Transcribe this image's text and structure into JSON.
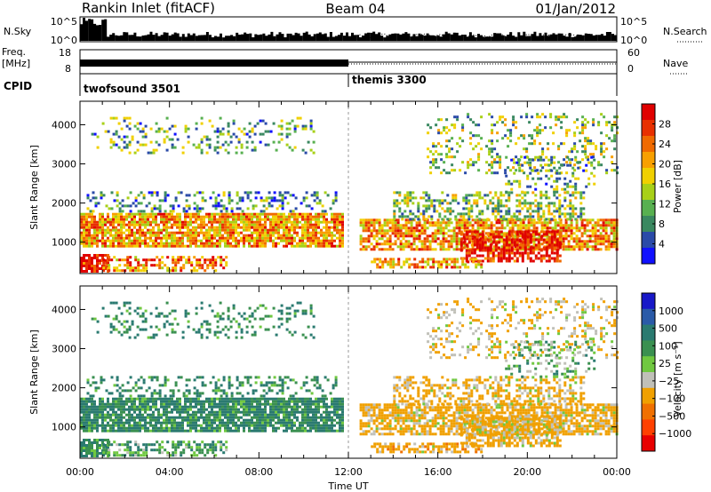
{
  "header": {
    "station": "Rankin Inlet (fitACF)",
    "beam": "Beam 04",
    "date": "01/Jan/2012"
  },
  "top_panel": {
    "left_label": "N.Sky",
    "left_ticks": [
      "10^5",
      "10^0"
    ],
    "right_label": "N.Search",
    "right_ticks": [
      "10^5",
      "10^0"
    ]
  },
  "freq_panel": {
    "left_label_1": "Freq.",
    "left_label_2": "[MHz]",
    "left_ticks": [
      "18",
      "8"
    ],
    "right_label": "Nave",
    "right_ticks": [
      "60",
      "0"
    ]
  },
  "cpid_panel": {
    "label": "CPID",
    "modes": [
      {
        "name": "twofsound 3501",
        "start_hour": 0,
        "end_hour": 12
      },
      {
        "name": "themis 3300",
        "start_hour": 12,
        "end_hour": 24
      }
    ]
  },
  "power_panel": {
    "ylabel": "Slant Range [km]",
    "yticks": [
      "4000",
      "3000",
      "2000",
      "1000"
    ],
    "cbar_label": "Power [dB]",
    "cbar_ticks": [
      "28",
      "24",
      "20",
      "16",
      "12",
      "8",
      "4"
    ],
    "cbar_colors": [
      "#1010ff",
      "#2a4aa8",
      "#3a8860",
      "#58b050",
      "#a8d018",
      "#f0d000",
      "#f8a000",
      "#f06a00",
      "#e83000",
      "#e00000"
    ]
  },
  "velocity_panel": {
    "ylabel": "Slant Range [km]",
    "yticks": [
      "4000",
      "3000",
      "2000",
      "1000"
    ],
    "cbar_label": "Velocity [m s⁻¹]",
    "cbar_ticks": [
      "1000",
      "500",
      "100",
      "25",
      "−25",
      "−100",
      "−500",
      "−1000"
    ],
    "cbar_colors": [
      "#1818c8",
      "#2a5aa8",
      "#2a7a70",
      "#3a9050",
      "#70c840",
      "#c0c0b8",
      "#f0a000",
      "#f07000",
      "#ff4000",
      "#e80000"
    ]
  },
  "x_axis": {
    "label": "Time UT",
    "ticks": [
      "00:00",
      "04:00",
      "08:00",
      "12:00",
      "16:00",
      "20:00",
      "00:00"
    ]
  },
  "chart_data": {
    "type": "heatmap",
    "title": "Rankin Inlet (fitACF) Beam 04 01/Jan/2012",
    "xlabel": "Time UT",
    "ylabel": "Slant Range [km]",
    "xlim_hours": [
      0,
      24
    ],
    "ylim_km": [
      200,
      4600
    ],
    "panels": [
      {
        "name": "Power",
        "unit": "dB",
        "color_range": [
          0,
          30
        ]
      },
      {
        "name": "Velocity",
        "unit": "m s⁻¹",
        "color_range": [
          -1000,
          1000
        ]
      }
    ],
    "echo_regions": [
      {
        "t0": 0.0,
        "t1": 11.8,
        "r0": 900,
        "r1": 1750,
        "power": 20,
        "velocity": 120,
        "density": 0.85
      },
      {
        "t0": 0.0,
        "t1": 1.2,
        "r0": 250,
        "r1": 700,
        "power": 28,
        "velocity": 80,
        "density": 0.8
      },
      {
        "t0": 1.0,
        "t1": 6.5,
        "r0": 250,
        "r1": 650,
        "power": 22,
        "velocity": 60,
        "density": 0.55
      },
      {
        "t0": 0.3,
        "t1": 11.5,
        "r0": 1800,
        "r1": 2300,
        "power": 8,
        "velocity": 100,
        "density": 0.3
      },
      {
        "t0": 0.5,
        "t1": 10.5,
        "r0": 3300,
        "r1": 4200,
        "power": 10,
        "velocity": 100,
        "density": 0.18
      },
      {
        "t0": 12.5,
        "t1": 24.0,
        "r0": 800,
        "r1": 1600,
        "power": 20,
        "velocity": -200,
        "density": 0.75
      },
      {
        "t0": 17.0,
        "t1": 21.5,
        "r0": 500,
        "r1": 1300,
        "power": 28,
        "velocity": -150,
        "density": 0.7
      },
      {
        "t0": 14.0,
        "t1": 22.5,
        "r0": 1600,
        "r1": 2300,
        "power": 12,
        "velocity": -150,
        "density": 0.45
      },
      {
        "t0": 13.0,
        "t1": 18.0,
        "r0": 350,
        "r1": 600,
        "power": 20,
        "velocity": -300,
        "density": 0.6
      },
      {
        "t0": 15.5,
        "t1": 24.0,
        "r0": 2800,
        "r1": 4300,
        "power": 12,
        "velocity": -100,
        "density": 0.22
      },
      {
        "t0": 19.0,
        "t1": 23.0,
        "r0": 2300,
        "r1": 3200,
        "power": 10,
        "velocity": 25,
        "density": 0.25
      }
    ]
  }
}
